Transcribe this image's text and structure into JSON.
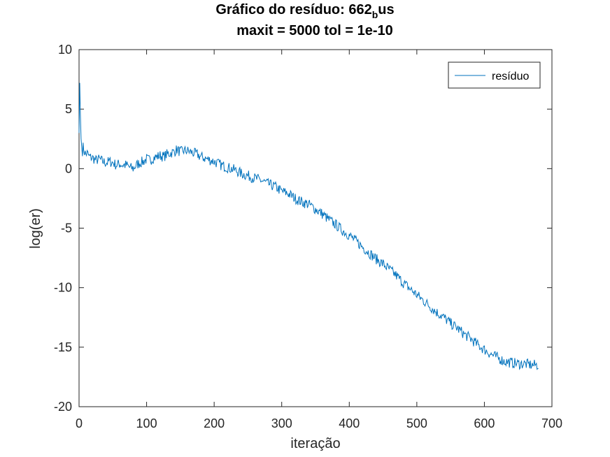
{
  "chart_data": {
    "type": "line",
    "title_main": "Gráfico do resíduo:  662",
    "title_subscript": "b",
    "title_suffix": "us",
    "subtitle": "maxit = 5000 tol = 1e-10",
    "xlabel": "iteração",
    "ylabel": "log(er)",
    "xlim": [
      0,
      700
    ],
    "ylim": [
      -20,
      10
    ],
    "xticks": [
      0,
      100,
      200,
      300,
      400,
      500,
      600,
      700
    ],
    "yticks": [
      10,
      5,
      0,
      -5,
      -10,
      -15,
      -20
    ],
    "grid": false,
    "legend_position": "top-right",
    "series": [
      {
        "name": "resíduo",
        "color": "#0072BD",
        "x": [
          0,
          1,
          2,
          3,
          4,
          5,
          6,
          8,
          10,
          12,
          15,
          20,
          25,
          30,
          35,
          40,
          45,
          50,
          55,
          60,
          65,
          70,
          75,
          80,
          85,
          90,
          95,
          100,
          105,
          110,
          115,
          120,
          125,
          130,
          135,
          140,
          145,
          150,
          155,
          160,
          165,
          170,
          175,
          180,
          190,
          200,
          210,
          220,
          230,
          240,
          250,
          260,
          270,
          280,
          290,
          300,
          310,
          320,
          330,
          340,
          350,
          360,
          370,
          380,
          390,
          400,
          410,
          420,
          430,
          440,
          450,
          460,
          470,
          480,
          490,
          500,
          510,
          520,
          530,
          540,
          550,
          560,
          570,
          580,
          590,
          600,
          610,
          620,
          630,
          640,
          650,
          660,
          670,
          675,
          680
        ],
        "y": [
          3.0,
          7.2,
          4.5,
          2.5,
          1.8,
          1.5,
          1.8,
          1.4,
          1.2,
          1.3,
          1.0,
          0.9,
          0.7,
          0.8,
          0.6,
          0.5,
          0.6,
          0.5,
          0.3,
          0.4,
          0.3,
          0.3,
          0.1,
          0.0,
          0.3,
          0.5,
          0.6,
          0.8,
          0.7,
          0.9,
          1.0,
          1.1,
          1.0,
          1.2,
          1.3,
          1.4,
          1.6,
          1.4,
          1.5,
          1.5,
          1.4,
          1.3,
          1.2,
          1.0,
          0.8,
          0.6,
          0.3,
          0.1,
          -0.1,
          -0.4,
          -0.6,
          -0.8,
          -1.0,
          -1.3,
          -1.5,
          -1.9,
          -2.1,
          -2.5,
          -2.8,
          -3.0,
          -3.4,
          -3.8,
          -4.3,
          -4.7,
          -5.2,
          -5.6,
          -6.1,
          -6.6,
          -7.1,
          -7.6,
          -8.0,
          -8.5,
          -9.0,
          -9.6,
          -10.1,
          -10.6,
          -11.1,
          -11.6,
          -12.1,
          -12.5,
          -13.0,
          -13.4,
          -13.9,
          -14.3,
          -14.8,
          -15.2,
          -15.6,
          -15.9,
          -16.2,
          -16.3,
          -16.4,
          -16.4,
          -16.5,
          -16.5,
          -16.5
        ]
      }
    ]
  }
}
